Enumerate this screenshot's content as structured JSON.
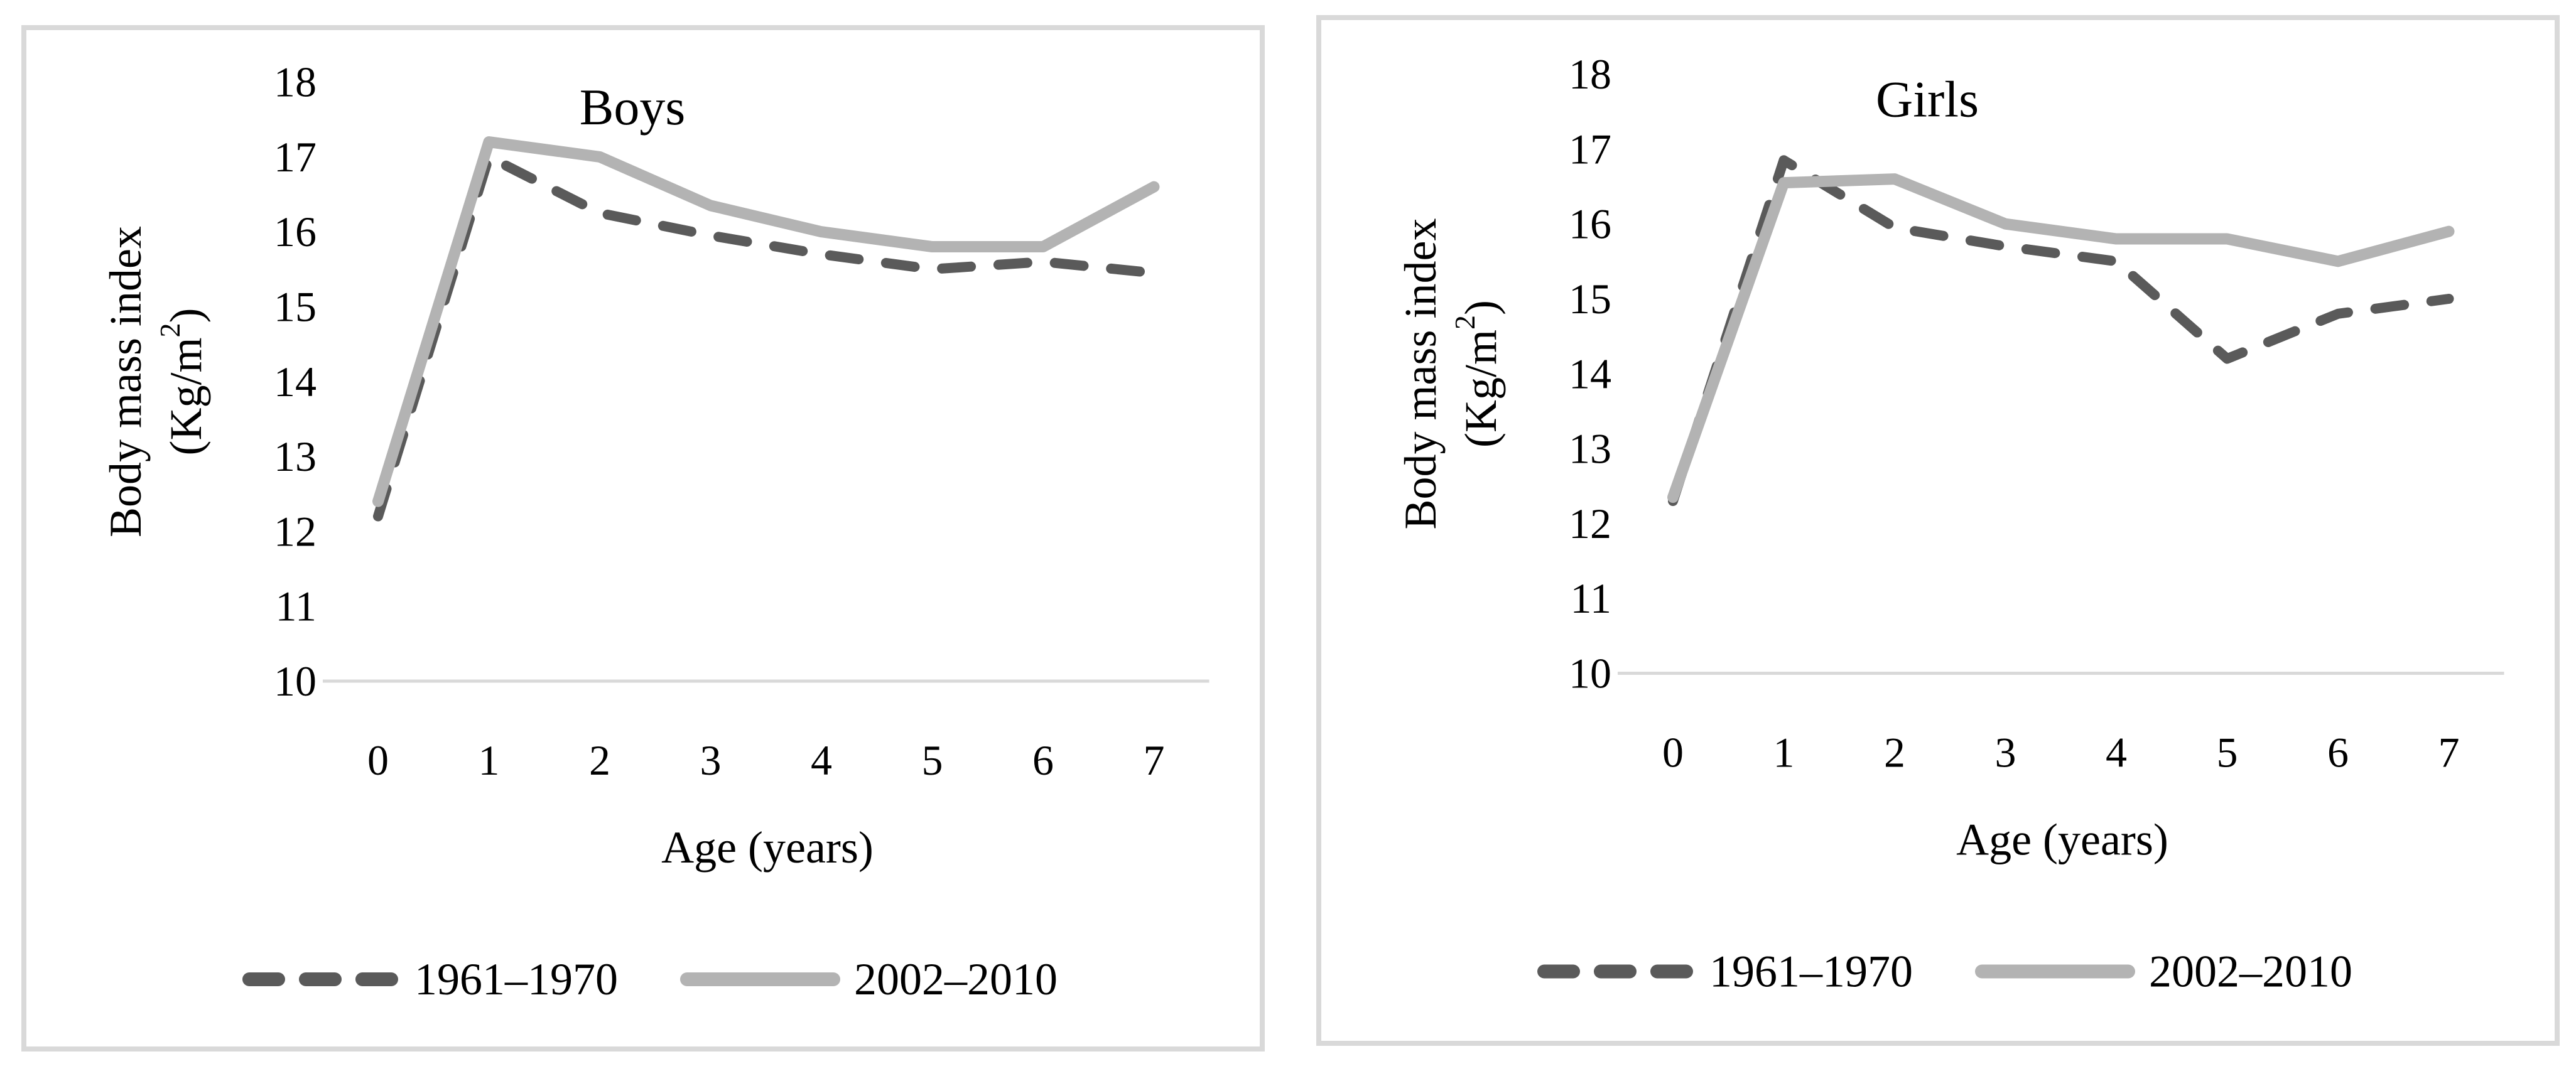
{
  "figure": {
    "background": "#ffffff",
    "border_color": "#d9d9d9",
    "axis_color": "#d9d9d9",
    "text_color": "#000000"
  },
  "chart_data": [
    {
      "type": "line",
      "title": "Boys",
      "xlabel": "Age (years)",
      "ylabel_line1": "Body mass index",
      "ylabel_line2": "(Kg/m²)",
      "x": [
        "0",
        "1",
        "2",
        "3",
        "4",
        "5",
        "6",
        "7"
      ],
      "ylim": [
        10,
        18
      ],
      "yticks": [
        "18",
        "17",
        "16",
        "15",
        "14",
        "13",
        "12",
        "11",
        "10"
      ],
      "grid": false,
      "legend_position": "bottom",
      "series": [
        {
          "name": "1961–1970",
          "style": "dashed",
          "color": "#5a5a5a",
          "values": [
            12.2,
            17.0,
            16.25,
            15.95,
            15.7,
            15.5,
            15.6,
            15.45
          ]
        },
        {
          "name": "2002–2010",
          "style": "solid",
          "color": "#b3b3b3",
          "values": [
            12.4,
            17.2,
            17.0,
            16.35,
            16.0,
            15.8,
            15.8,
            16.6
          ]
        }
      ]
    },
    {
      "type": "line",
      "title": "Girls",
      "xlabel": "Age (years)",
      "ylabel_line1": "Body mass index",
      "ylabel_line2": "(Kg/m²)",
      "x": [
        "0",
        "1",
        "2",
        "3",
        "4",
        "5",
        "6",
        "7"
      ],
      "ylim": [
        10,
        18
      ],
      "yticks": [
        "18",
        "17",
        "16",
        "15",
        "14",
        "13",
        "12",
        "11",
        "10"
      ],
      "grid": false,
      "legend_position": "bottom",
      "series": [
        {
          "name": "1961–1970",
          "style": "dashed",
          "color": "#5a5a5a",
          "values": [
            12.3,
            16.85,
            15.95,
            15.7,
            15.5,
            14.2,
            14.8,
            15.0
          ]
        },
        {
          "name": "2002–2010",
          "style": "solid",
          "color": "#b3b3b3",
          "values": [
            12.35,
            16.55,
            16.6,
            16.0,
            15.8,
            15.8,
            15.5,
            15.9
          ]
        }
      ]
    }
  ]
}
